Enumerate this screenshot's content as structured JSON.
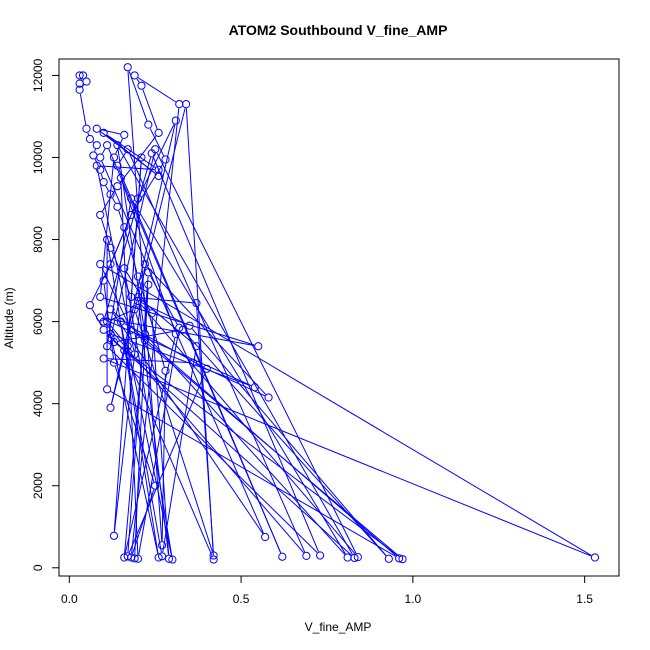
{
  "chart_data": {
    "type": "line",
    "title": "ATOM2 Southbound V_fine_AMP",
    "xlabel": "V_fine_AMP",
    "ylabel": "Altitude (m)",
    "xlim": [
      -0.03,
      1.6
    ],
    "ylim": [
      -200,
      12400
    ],
    "xticks": [
      0.0,
      0.5,
      1.0,
      1.5
    ],
    "xtick_labels": [
      "0.0",
      "0.5",
      "1.0",
      "1.5"
    ],
    "yticks": [
      0,
      2000,
      4000,
      6000,
      8000,
      10000,
      12000
    ],
    "ytick_labels": [
      "0",
      "2000",
      "4000",
      "6000",
      "8000",
      "10000",
      "12000"
    ],
    "plot_style": "both",
    "marker": "open-circle",
    "grid": false,
    "colors": {
      "series": "#0000ff",
      "axis": "#000000",
      "background": "#ffffff"
    },
    "series": [
      {
        "points": [
          [
            0.03,
            12000
          ],
          [
            0.04,
            12000
          ],
          [
            0.03,
            11800
          ],
          [
            0.05,
            11850
          ],
          [
            0.03,
            11650
          ],
          [
            0.05,
            10700
          ],
          [
            0.06,
            10450
          ],
          [
            0.08,
            10300
          ],
          [
            0.07,
            10050
          ],
          [
            0.09,
            9700
          ],
          [
            0.1,
            9400
          ],
          [
            0.12,
            9100
          ],
          [
            0.14,
            8800
          ],
          [
            0.16,
            8300
          ],
          [
            0.2,
            7100
          ],
          [
            0.28,
            4800
          ],
          [
            0.27,
            550
          ],
          [
            0.17,
            12200
          ],
          [
            0.23,
            10800
          ],
          [
            0.28,
            9950
          ],
          [
            0.18,
            8600
          ],
          [
            0.12,
            7400
          ],
          [
            0.06,
            6400
          ],
          [
            0.1,
            5800
          ],
          [
            0.16,
            5300
          ],
          [
            0.42,
            200
          ],
          [
            0.34,
            11300
          ],
          [
            0.12,
            3900
          ],
          [
            0.31,
            10900
          ],
          [
            0.2,
            9000
          ],
          [
            0.1,
            7000
          ],
          [
            0.13,
            5000
          ],
          [
            0.25,
            2000
          ],
          [
            0.18,
            250
          ],
          [
            0.32,
            11300
          ],
          [
            0.19,
            12000
          ],
          [
            0.21,
            11750
          ],
          [
            0.26,
            10600
          ],
          [
            0.14,
            9300
          ],
          [
            0.09,
            8600
          ],
          [
            0.12,
            7800
          ],
          [
            0.18,
            6600
          ],
          [
            0.37,
            6450
          ],
          [
            0.42,
            300
          ],
          [
            0.19,
            6300
          ],
          [
            0.11,
            6000
          ],
          [
            0.19,
            5200
          ],
          [
            0.08,
            9800
          ],
          [
            0.26,
            9700
          ],
          [
            0.1,
            10600
          ],
          [
            0.26,
            9550
          ],
          [
            0.08,
            10700
          ],
          [
            0.16,
            10550
          ],
          [
            0.13,
            10000
          ],
          [
            0.09,
            6600
          ],
          [
            0.55,
            5400
          ],
          [
            0.09,
            6100
          ],
          [
            0.54,
            4400
          ],
          [
            0.12,
            5700
          ],
          [
            0.26,
            250
          ],
          [
            0.11,
            8000
          ],
          [
            0.11,
            4350
          ],
          [
            0.96,
            230
          ],
          [
            0.12,
            6300
          ],
          [
            0.57,
            750
          ],
          [
            0.09,
            10000
          ],
          [
            0.11,
            10300
          ],
          [
            0.62,
            270
          ],
          [
            0.14,
            9800
          ],
          [
            0.17,
            10200
          ],
          [
            0.69,
            290
          ],
          [
            0.1,
            6000
          ],
          [
            0.24,
            10100
          ],
          [
            0.73,
            300
          ],
          [
            0.11,
            5400
          ],
          [
            0.18,
            9000
          ],
          [
            0.81,
            250
          ],
          [
            0.22,
            5700
          ],
          [
            0.14,
            10300
          ],
          [
            0.83,
            240
          ],
          [
            0.12,
            5600
          ],
          [
            0.25,
            10200
          ],
          [
            0.84,
            260
          ],
          [
            0.2,
            6500
          ],
          [
            0.35,
            5900
          ],
          [
            0.93,
            220
          ],
          [
            0.33,
            5800
          ],
          [
            0.13,
            5500
          ],
          [
            0.97,
            210
          ],
          [
            0.18,
            5800
          ],
          [
            0.09,
            7400
          ],
          [
            1.53,
            250
          ],
          [
            0.1,
            5100
          ],
          [
            0.36,
            5000
          ],
          [
            0.58,
            4150
          ],
          [
            0.22,
            7400
          ],
          [
            0.13,
            780
          ],
          [
            0.21,
            10000
          ],
          [
            0.17,
            5400
          ],
          [
            0.3,
            200
          ],
          [
            0.16,
            7300
          ],
          [
            0.24,
            6200
          ],
          [
            0.29,
            220
          ],
          [
            0.2,
            6600
          ],
          [
            0.37,
            5400
          ],
          [
            0.27,
            280
          ],
          [
            0.15,
            6000
          ],
          [
            0.4,
            4850
          ],
          [
            0.17,
            280
          ],
          [
            0.23,
            7200
          ],
          [
            0.32,
            5850
          ],
          [
            0.2,
            220
          ],
          [
            0.15,
            9500
          ],
          [
            0.31,
            5700
          ],
          [
            0.16,
            250
          ],
          [
            0.23,
            6900
          ],
          [
            0.22,
            5550
          ],
          [
            0.19,
            230
          ]
        ]
      }
    ]
  }
}
